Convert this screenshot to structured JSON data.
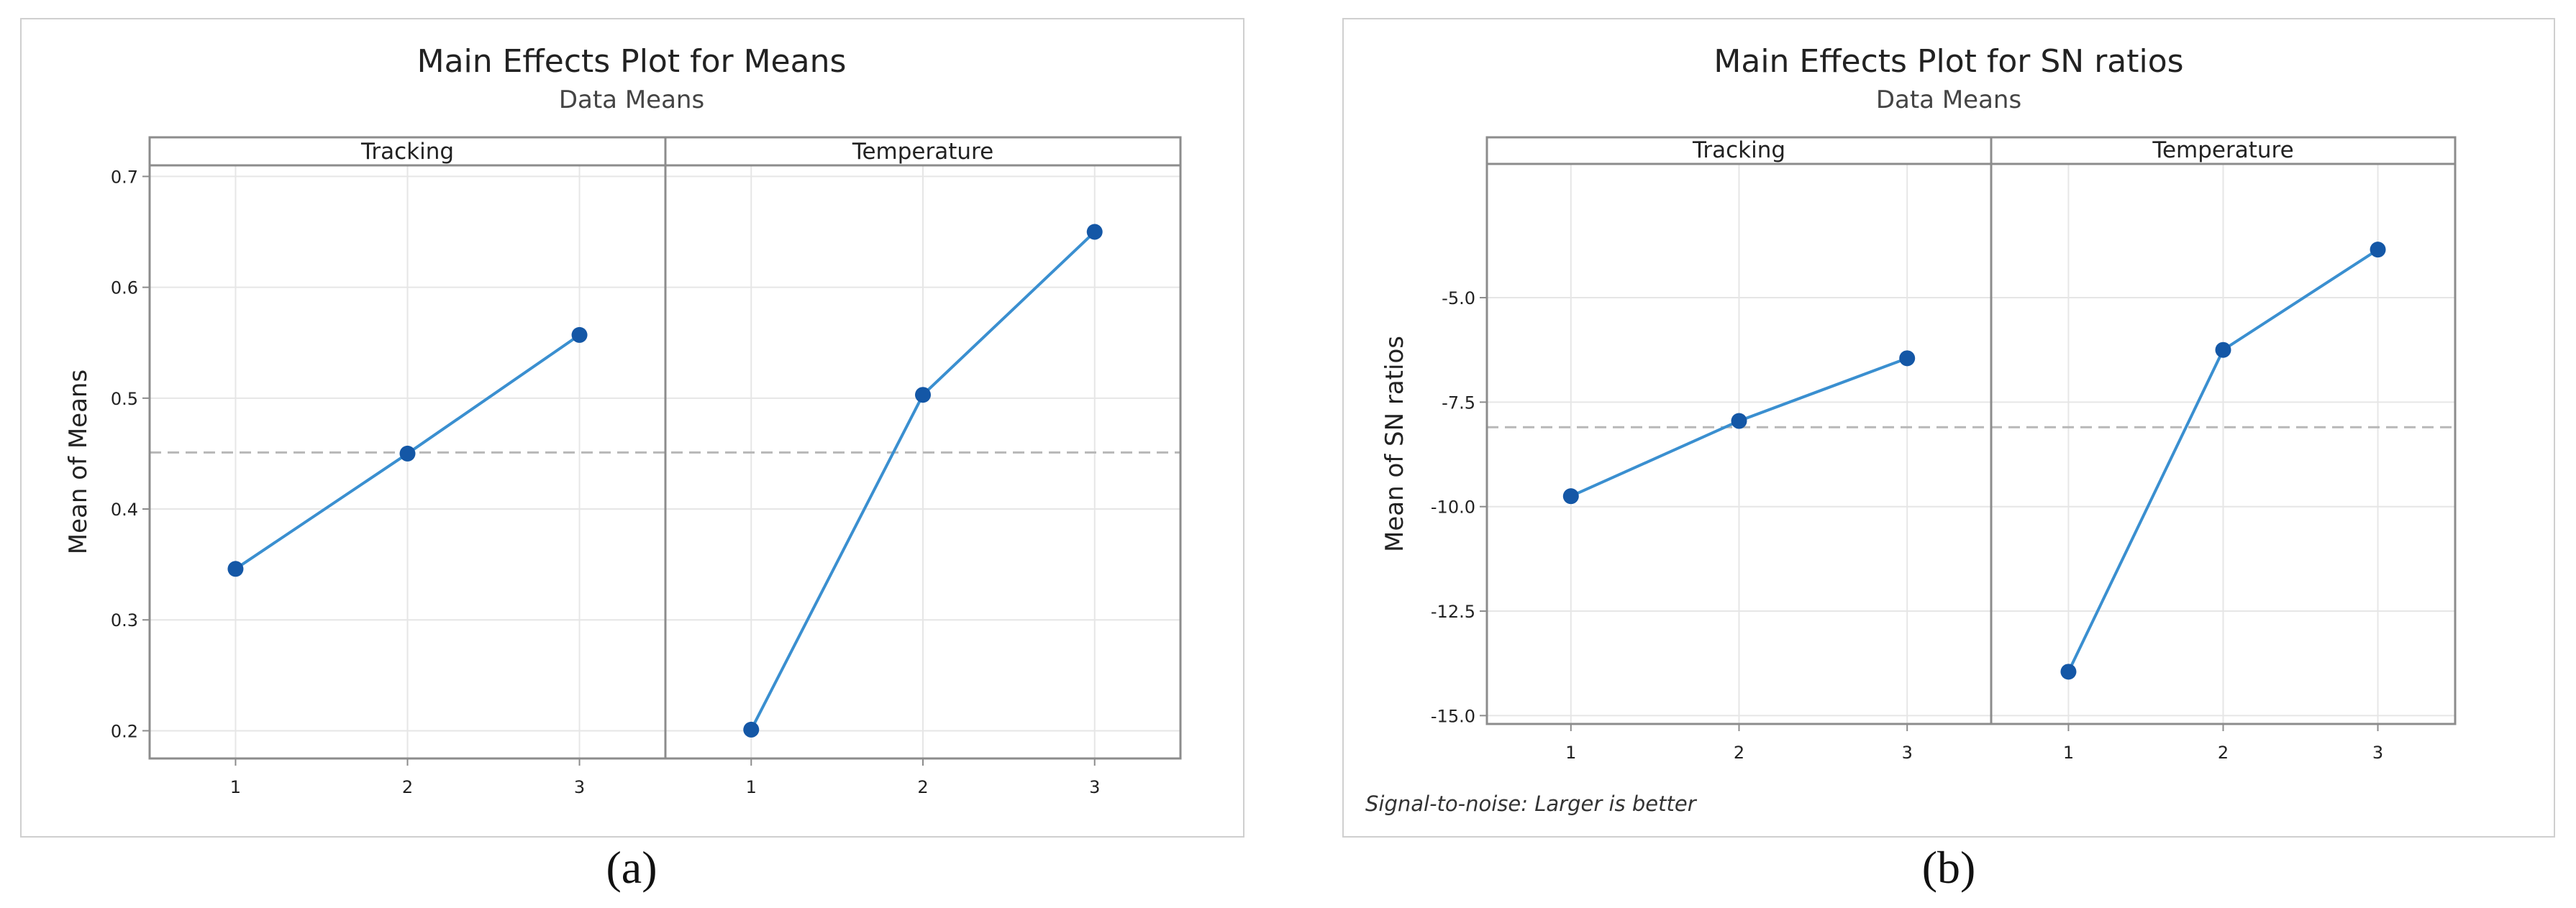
{
  "chart_data": [
    {
      "type": "line",
      "title": "Main Effects Plot for Means",
      "subtitle": "Data Means",
      "ylabel": "Mean of Means",
      "ylim": [
        0.175,
        0.71
      ],
      "yticks": [
        "0.2",
        "0.3",
        "0.4",
        "0.5",
        "0.6",
        "0.7"
      ],
      "ytick_values": [
        0.2,
        0.3,
        0.4,
        0.5,
        0.6,
        0.7
      ],
      "reference_line": 0.451,
      "grid": true,
      "facets": [
        {
          "label": "Tracking",
          "x": [
            "1",
            "2",
            "3"
          ],
          "values": [
            0.346,
            0.45,
            0.557
          ]
        },
        {
          "label": "Temperature",
          "x": [
            "1",
            "2",
            "3"
          ],
          "values": [
            0.201,
            0.503,
            0.65
          ]
        }
      ],
      "footnote": "",
      "caption": "(a)"
    },
    {
      "type": "line",
      "title": "Main Effects Plot for SN ratios",
      "subtitle": "Data Means",
      "ylabel": "Mean of SN ratios",
      "ylim": [
        -15.2,
        -1.8
      ],
      "yticks": [
        "-5.0",
        "-7.5",
        "-10.0",
        "-12.5",
        "-15.0"
      ],
      "ytick_values": [
        -5.0,
        -7.5,
        -10.0,
        -12.5,
        -15.0
      ],
      "reference_line": -8.1,
      "grid": true,
      "facets": [
        {
          "label": "Tracking",
          "x": [
            "1",
            "2",
            "3"
          ],
          "values": [
            -9.75,
            -7.95,
            -6.45
          ]
        },
        {
          "label": "Temperature",
          "x": [
            "1",
            "2",
            "3"
          ],
          "values": [
            -13.95,
            -6.25,
            -3.85
          ]
        }
      ],
      "footnote": "Signal-to-noise: Larger is better",
      "caption": "(b)"
    }
  ],
  "colors": {
    "series": "#3a8fd0",
    "marker": "#1457a6",
    "reference": "#b8b8b8",
    "grid": "#e6e6e6",
    "axis": "#8c8c8c"
  }
}
